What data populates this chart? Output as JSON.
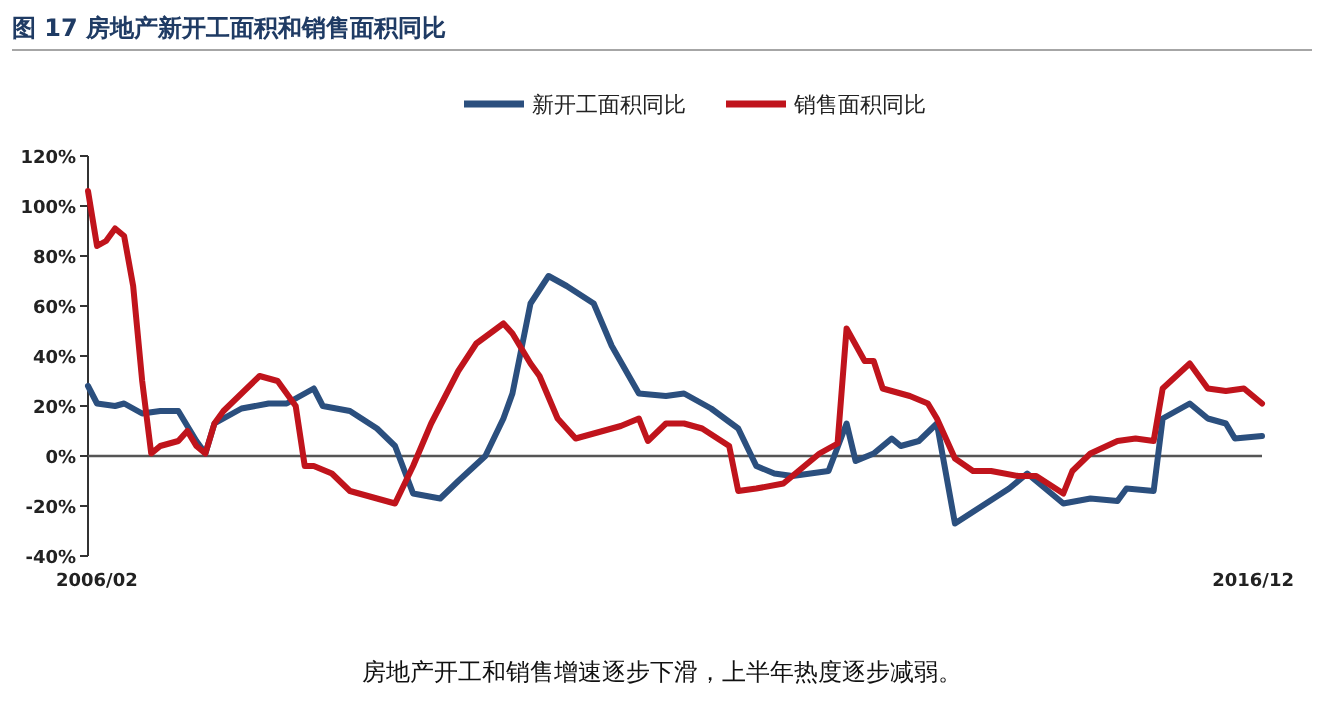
{
  "chart_data": {
    "type": "line",
    "title": "图 17 房地产新开工面积和销售面积同比",
    "annotations": [
      "房地产开工和销售增速逐步下滑，上半年热度逐步减弱。"
    ],
    "xlim": [
      "2006-02",
      "2016-12"
    ],
    "xticks": [
      {
        "value": "2006-02",
        "label": "2006/02"
      },
      {
        "value": "2016-12",
        "label": "2016/12"
      }
    ],
    "ylim": [
      -40,
      120
    ],
    "yticks": [
      {
        "value": -40,
        "label": "-40%"
      },
      {
        "value": -20,
        "label": "-20%"
      },
      {
        "value": 0,
        "label": "0%"
      },
      {
        "value": 20,
        "label": "20%"
      },
      {
        "value": 40,
        "label": "40%"
      },
      {
        "value": 60,
        "label": "60%"
      },
      {
        "value": 80,
        "label": "80%"
      },
      {
        "value": 100,
        "label": "100%"
      },
      {
        "value": 120,
        "label": "120%"
      }
    ],
    "legend": "top",
    "marker": "none",
    "line_style": "solid",
    "series": [
      {
        "name": "新开工面积同比",
        "color": "#2b4f7e",
        "x": [
          "2006-02",
          "2006-03",
          "2006-05",
          "2006-06",
          "2006-08",
          "2006-10",
          "2006-12",
          "2007-02",
          "2007-03",
          "2007-04",
          "2007-07",
          "2007-10",
          "2007-12",
          "2008-03",
          "2008-04",
          "2008-07",
          "2008-10",
          "2008-12",
          "2009-02",
          "2009-05",
          "2009-07",
          "2009-10",
          "2009-12",
          "2010-01",
          "2010-03",
          "2010-05",
          "2010-07",
          "2010-10",
          "2010-12",
          "2011-03",
          "2011-06",
          "2011-08",
          "2011-11",
          "2012-02",
          "2012-04",
          "2012-06",
          "2012-08",
          "2012-10",
          "2012-12",
          "2013-02",
          "2013-03",
          "2013-05",
          "2013-07",
          "2013-08",
          "2013-10",
          "2013-12",
          "2014-02",
          "2014-05",
          "2014-08",
          "2014-10",
          "2014-11",
          "2015-02",
          "2015-05",
          "2015-08",
          "2015-09",
          "2015-12",
          "2016-01",
          "2016-04",
          "2016-06",
          "2016-08",
          "2016-09",
          "2016-12"
        ],
        "values": [
          28,
          21,
          20,
          21,
          17,
          18,
          18,
          6,
          1,
          13,
          19,
          21,
          21,
          27,
          20,
          18,
          11,
          4,
          -15,
          -17,
          -10,
          0,
          15,
          25,
          61,
          72,
          68,
          61,
          44,
          25,
          24,
          25,
          19,
          11,
          -4,
          -7,
          -8,
          -7,
          -6,
          13,
          -2,
          1,
          7,
          4,
          6,
          13,
          -27,
          -20,
          -13,
          -7,
          -10,
          -19,
          -17,
          -18,
          -13,
          -14,
          15,
          21,
          15,
          13,
          7,
          8
        ]
      },
      {
        "name": "销售面积同比",
        "color": "#c0141c",
        "x": [
          "2006-02",
          "2006-03",
          "2006-04",
          "2006-05",
          "2006-06",
          "2006-07",
          "2006-08",
          "2006-09",
          "2006-10",
          "2006-12",
          "2007-01",
          "2007-02",
          "2007-03",
          "2007-04",
          "2007-05",
          "2007-07",
          "2007-09",
          "2007-11",
          "2008-01",
          "2008-02",
          "2008-03",
          "2008-05",
          "2008-07",
          "2008-10",
          "2008-12",
          "2009-02",
          "2009-04",
          "2009-07",
          "2009-09",
          "2009-12",
          "2010-01",
          "2010-03",
          "2010-04",
          "2010-06",
          "2010-08",
          "2010-11",
          "2011-01",
          "2011-03",
          "2011-04",
          "2011-06",
          "2011-08",
          "2011-10",
          "2012-01",
          "2012-02",
          "2012-04",
          "2012-07",
          "2012-09",
          "2012-11",
          "2013-01",
          "2013-02",
          "2013-04",
          "2013-05",
          "2013-06",
          "2013-09",
          "2013-11",
          "2013-12",
          "2014-02",
          "2014-04",
          "2014-06",
          "2014-09",
          "2014-11",
          "2015-02",
          "2015-03",
          "2015-05",
          "2015-08",
          "2015-10",
          "2015-12",
          "2016-01",
          "2016-04",
          "2016-06",
          "2016-08",
          "2016-10",
          "2016-12"
        ],
        "values": [
          106,
          84,
          86,
          91,
          88,
          68,
          30,
          1,
          4,
          6,
          10,
          4,
          1,
          13,
          18,
          25,
          32,
          30,
          20,
          -4,
          -4,
          -7,
          -14,
          -17,
          -19,
          -4,
          13,
          34,
          45,
          53,
          49,
          37,
          32,
          15,
          7,
          10,
          12,
          15,
          6,
          13,
          13,
          11,
          4,
          -14,
          -13,
          -11,
          -5,
          1,
          5,
          51,
          38,
          38,
          27,
          24,
          21,
          15,
          -1,
          -6,
          -6,
          -8,
          -8,
          -15,
          -6,
          1,
          6,
          7,
          6,
          27,
          37,
          27,
          26,
          27,
          21
        ]
      }
    ]
  }
}
